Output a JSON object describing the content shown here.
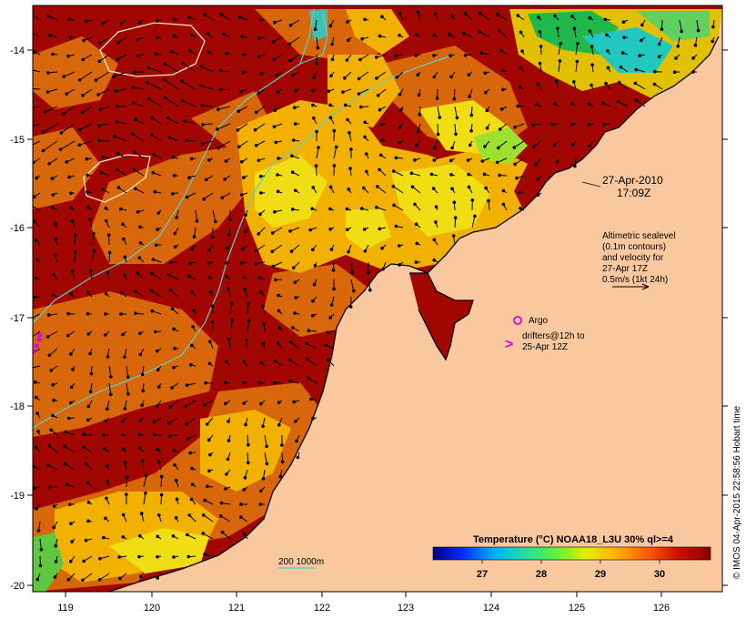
{
  "map": {
    "colors": {
      "land": "#f9c89f",
      "sea_hot": "#a20600",
      "sea_warm": "#d8660a",
      "sea_mid": "#f2b000",
      "sea_cool": "#f1dd14",
      "sea_green": "#1fb84a",
      "sea_cyan": "#20c8c0",
      "contour_shelf": "#5fd0c8",
      "sealevel_contour": "#e8e8c8",
      "argo": "#e000e0"
    },
    "lon_ticks": [
      "119",
      "120",
      "121",
      "122",
      "123",
      "124",
      "125",
      "126"
    ],
    "lat_ticks": [
      "-14",
      "-15",
      "-16",
      "-17",
      "-18",
      "-19",
      "-20"
    ],
    "timestamp": {
      "date": "27-Apr-2010",
      "time": "17:09Z"
    },
    "altimetry_note": [
      "Altimetric sealevel",
      "(0.1m contours)",
      "and velocity for",
      "27-Apr 17Z",
      "0.5m/s (1kt 24h)"
    ],
    "legend": {
      "argo": "Argo",
      "drifters_line1": "drifters@12h to",
      "drifters_line2": "25-Apr 12Z",
      "depth_contours": "200  1000m"
    },
    "colorbar": {
      "title": "Temperature (°C) NOAA18_L3U 30% ql>=4",
      "tick_labels": [
        "27",
        "28",
        "29",
        "30"
      ],
      "stops": [
        "#00007f",
        "#0030ff",
        "#00b0ff",
        "#20e0a0",
        "#60f040",
        "#e0f000",
        "#ffb000",
        "#ff6000",
        "#d01000",
        "#8a0000"
      ]
    },
    "credit": "© IMOS 04-Apr-2015 22:58:56 Hobart time"
  }
}
